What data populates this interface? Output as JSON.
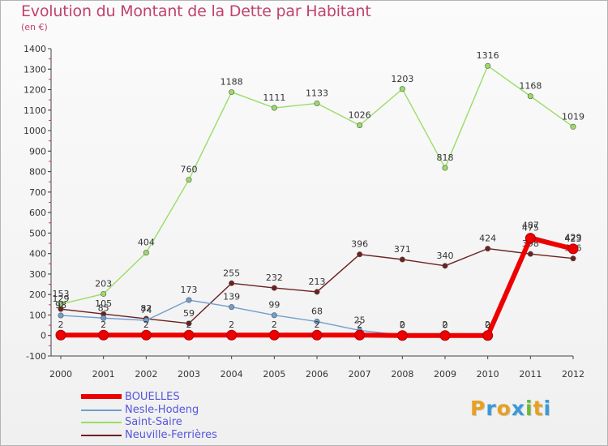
{
  "title": "Evolution du Montant de la Dette par Habitant",
  "subtitle": "(en €)",
  "brand": "Proxiti",
  "brand_colors": [
    "#e8a020",
    "#3a9ad9",
    "#e8a020",
    "#3a9ad9",
    "#6bb839",
    "#e8a020",
    "#3a9ad9"
  ],
  "chart_data": {
    "type": "line",
    "x": [
      "2000",
      "2001",
      "2002",
      "2003",
      "2004",
      "2005",
      "2006",
      "2007",
      "2008",
      "2009",
      "2010",
      "2011",
      "2012"
    ],
    "ylim": [
      -100,
      1400
    ],
    "yticks": [
      -100,
      0,
      100,
      200,
      300,
      400,
      500,
      600,
      700,
      800,
      900,
      1000,
      1100,
      1200,
      1300,
      1400
    ],
    "grid": false,
    "legend_position": "bottom-left",
    "series": [
      {
        "name": "BOUELLES",
        "color": "#ee0000",
        "values": [
          2,
          2,
          2,
          2,
          2,
          2,
          2,
          2,
          0,
          0,
          0,
          475,
          423
        ]
      },
      {
        "name": "Nesle-Hodeng",
        "color": "#6f9fcf",
        "values": [
          98,
          85,
          74,
          173,
          139,
          99,
          68,
          25,
          2,
          2,
          2,
          487,
          429
        ]
      },
      {
        "name": "Saint-Saire",
        "color": "#99dd66",
        "values": [
          153,
          203,
          404,
          760,
          1188,
          1111,
          1133,
          1026,
          1203,
          818,
          1316,
          1168,
          1019
        ]
      },
      {
        "name": "Neuville-Ferrières",
        "color": "#6e2020",
        "values": [
          129,
          105,
          82,
          59,
          255,
          232,
          213,
          396,
          371,
          340,
          424,
          398,
          376
        ]
      }
    ]
  }
}
